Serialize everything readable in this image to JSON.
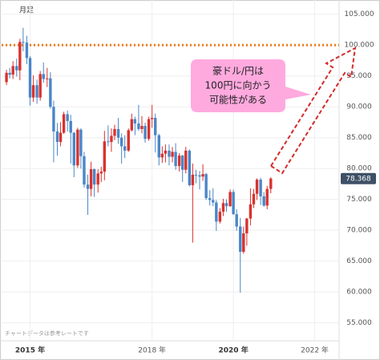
{
  "chart_data": {
    "type": "candlestick",
    "label": "月足",
    "note": "チャートデータは参考レートです",
    "x": [
      2014.42,
      2014.5,
      2014.58,
      2014.67,
      2014.75,
      2014.83,
      2014.92,
      2015,
      2015.08,
      2015.17,
      2015.25,
      2015.33,
      2015.42,
      2015.5,
      2015.58,
      2015.67,
      2015.75,
      2015.83,
      2015.92,
      2016,
      2016.08,
      2016.17,
      2016.25,
      2016.33,
      2016.42,
      2016.5,
      2016.58,
      2016.67,
      2016.75,
      2016.83,
      2016.92,
      2017,
      2017.08,
      2017.17,
      2017.25,
      2017.33,
      2017.42,
      2017.5,
      2017.58,
      2017.67,
      2017.75,
      2017.83,
      2017.92,
      2018,
      2018.08,
      2018.17,
      2018.25,
      2018.33,
      2018.42,
      2018.5,
      2018.58,
      2018.67,
      2018.75,
      2018.83,
      2018.92,
      2019,
      2019.08,
      2019.17,
      2019.25,
      2019.33,
      2019.42,
      2019.5,
      2019.58,
      2019.67,
      2019.75,
      2019.83,
      2019.92,
      2020,
      2020.08,
      2020.17,
      2020.25,
      2020.33,
      2020.42,
      2020.5,
      2020.58,
      2020.67,
      2020.75,
      2020.83,
      2020.92
    ],
    "series": [
      {
        "up_color": "#d9322e",
        "down_color": "#4a86c8",
        "open": [
          94.0,
          95.5,
          95.2,
          96.6,
          95.9,
          100.5,
          100.4,
          97.9,
          91.5,
          93.5,
          91.5,
          95.3,
          94.5,
          94.6,
          90.0,
          86.0,
          84.3,
          85.8,
          88.8,
          87.7,
          85.8,
          80.5,
          86.3,
          82.0,
          77.4,
          76.7,
          79.9,
          77.4,
          79.2,
          79.5,
          84.4,
          84.3,
          85.3,
          86.4,
          85.0,
          83.6,
          82.9,
          86.2,
          88.0,
          87.3,
          86.4,
          86.9,
          84.8,
          88.0,
          88.2,
          85.4,
          81.8,
          82.4,
          82.9,
          81.9,
          82.7,
          80.4,
          82.1,
          79.8,
          82.9,
          77.3,
          79.0,
          78.9,
          78.7,
          79.1,
          75.2,
          74.9,
          74.5,
          71.4,
          73.0,
          74.4,
          73.9,
          76.2,
          72.6,
          70.6,
          66.5,
          69.5,
          71.9,
          74.2,
          75.9,
          78.2,
          75.5,
          74.0,
          76.7
        ],
        "high": [
          96.0,
          96.3,
          97.4,
          97.8,
          101.0,
          102.8,
          101.5,
          98.2,
          95.1,
          94.4,
          95.8,
          97.2,
          96.3,
          95.6,
          91.0,
          87.4,
          87.5,
          89.2,
          89.4,
          88.7,
          85.9,
          86.6,
          86.5,
          82.7,
          79.0,
          81.1,
          80.0,
          79.9,
          80.3,
          86.1,
          87.0,
          86.5,
          87.1,
          88.2,
          85.7,
          85.4,
          86.5,
          88.9,
          88.4,
          90.3,
          88.5,
          87.4,
          88.4,
          90.3,
          88.9,
          85.6,
          83.6,
          83.9,
          83.9,
          83.5,
          84.1,
          82.5,
          82.2,
          83.5,
          83.1,
          80.8,
          79.8,
          79.6,
          80.7,
          79.3,
          76.5,
          76.8,
          74.9,
          73.6,
          75.1,
          75.0,
          76.6,
          76.6,
          73.4,
          72.0,
          70.6,
          72.0,
          76.8,
          76.7,
          78.4,
          78.5,
          76.2,
          77.2,
          78.6
        ],
        "low": [
          93.5,
          94.6,
          94.5,
          94.9,
          94.3,
          99.0,
          96.9,
          90.2,
          90.8,
          90.5,
          91.0,
          93.9,
          93.2,
          89.7,
          81.0,
          82.1,
          83.6,
          85.6,
          86.0,
          80.8,
          78.6,
          80.1,
          80.0,
          76.9,
          72.5,
          75.5,
          75.4,
          76.1,
          77.8,
          78.1,
          83.6,
          82.7,
          84.6,
          84.0,
          80.8,
          81.7,
          82.7,
          86.0,
          85.4,
          86.1,
          85.7,
          84.2,
          84.5,
          86.6,
          82.6,
          80.5,
          80.9,
          81.0,
          80.5,
          81.0,
          79.8,
          79.5,
          77.8,
          79.2,
          77.1,
          68.0,
          77.6,
          76.6,
          78.0,
          74.9,
          74.0,
          73.9,
          69.9,
          71.1,
          72.3,
          73.0,
          73.8,
          72.5,
          69.9,
          59.9,
          66.2,
          67.5,
          70.8,
          73.6,
          74.9,
          74.1,
          73.8,
          73.4,
          76.0
        ],
        "close": [
          95.5,
          95.2,
          96.6,
          95.9,
          100.5,
          100.4,
          97.9,
          91.5,
          93.5,
          91.5,
          95.3,
          94.5,
          94.6,
          90.0,
          86.0,
          84.3,
          85.8,
          88.8,
          87.7,
          85.8,
          80.5,
          86.3,
          82.0,
          77.4,
          76.7,
          79.9,
          77.4,
          79.2,
          79.5,
          84.4,
          84.3,
          85.3,
          86.4,
          85.0,
          83.6,
          82.9,
          86.2,
          88.0,
          87.3,
          86.4,
          86.9,
          84.8,
          88.0,
          88.2,
          85.4,
          81.8,
          82.4,
          82.9,
          81.9,
          82.7,
          80.4,
          82.1,
          79.8,
          82.9,
          77.3,
          79.0,
          78.9,
          78.7,
          79.1,
          75.2,
          74.9,
          74.5,
          71.4,
          73.0,
          74.4,
          73.9,
          76.2,
          72.6,
          70.6,
          66.5,
          69.5,
          71.9,
          74.2,
          75.9,
          78.2,
          75.5,
          74.0,
          76.7,
          78.368
        ]
      }
    ],
    "xlim": [
      2014.3,
      2022.6
    ],
    "xticks": [
      {
        "value": 2015,
        "label": "2015 年"
      },
      {
        "value": 2018,
        "label": "2018 年"
      },
      {
        "value": 2020,
        "label": "2020 年"
      },
      {
        "value": 2022,
        "label": "2022 年"
      }
    ],
    "ylim": [
      52.1,
      107.3
    ],
    "yticks": [
      {
        "value": 55,
        "label": "55.000"
      },
      {
        "value": 60,
        "label": "60.000"
      },
      {
        "value": 65,
        "label": "65.000"
      },
      {
        "value": 70,
        "label": "70.000"
      },
      {
        "value": 75,
        "label": "75.000"
      },
      {
        "value": 80,
        "label": "80.000"
      },
      {
        "value": 85,
        "label": "85.000"
      },
      {
        "value": 90,
        "label": "90.000"
      },
      {
        "value": 95,
        "label": "95.000"
      },
      {
        "value": 100,
        "label": "100.000"
      },
      {
        "value": 105,
        "label": "105.000"
      }
    ],
    "grid": true,
    "reference_line": {
      "value": 100,
      "color": "#f07c1a"
    },
    "callout": [
      "豪ドル/円は",
      "100円に向かう",
      "可能性がある"
    ]
  }
}
